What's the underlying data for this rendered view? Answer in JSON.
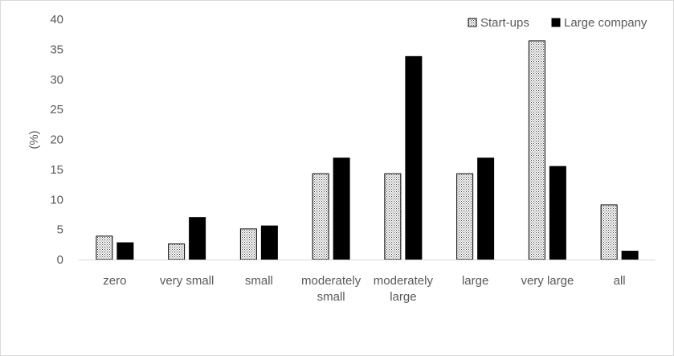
{
  "chart_data": {
    "type": "bar",
    "title": "",
    "xlabel": "",
    "ylabel": "(%)",
    "ylim": [
      0,
      40
    ],
    "yticks": [
      0,
      5,
      10,
      15,
      20,
      25,
      30,
      35,
      40
    ],
    "grid": false,
    "legend_position": "top-right",
    "categories": [
      [
        "zero"
      ],
      [
        "very small"
      ],
      [
        "small"
      ],
      [
        "moderately",
        "small"
      ],
      [
        "moderately",
        "large"
      ],
      [
        "large"
      ],
      [
        "very large"
      ],
      [
        "all"
      ]
    ],
    "series": [
      {
        "name": "Start-ups",
        "values": [
          3.9,
          2.6,
          5.1,
          14.3,
          14.3,
          14.3,
          36.4,
          9.1
        ],
        "fill": "dotted-pattern",
        "color": "#ffffff"
      },
      {
        "name": "Large company",
        "values": [
          2.8,
          7.0,
          5.6,
          16.9,
          33.8,
          16.9,
          15.5,
          1.4
        ],
        "fill": "solid",
        "color": "#000000"
      }
    ]
  }
}
